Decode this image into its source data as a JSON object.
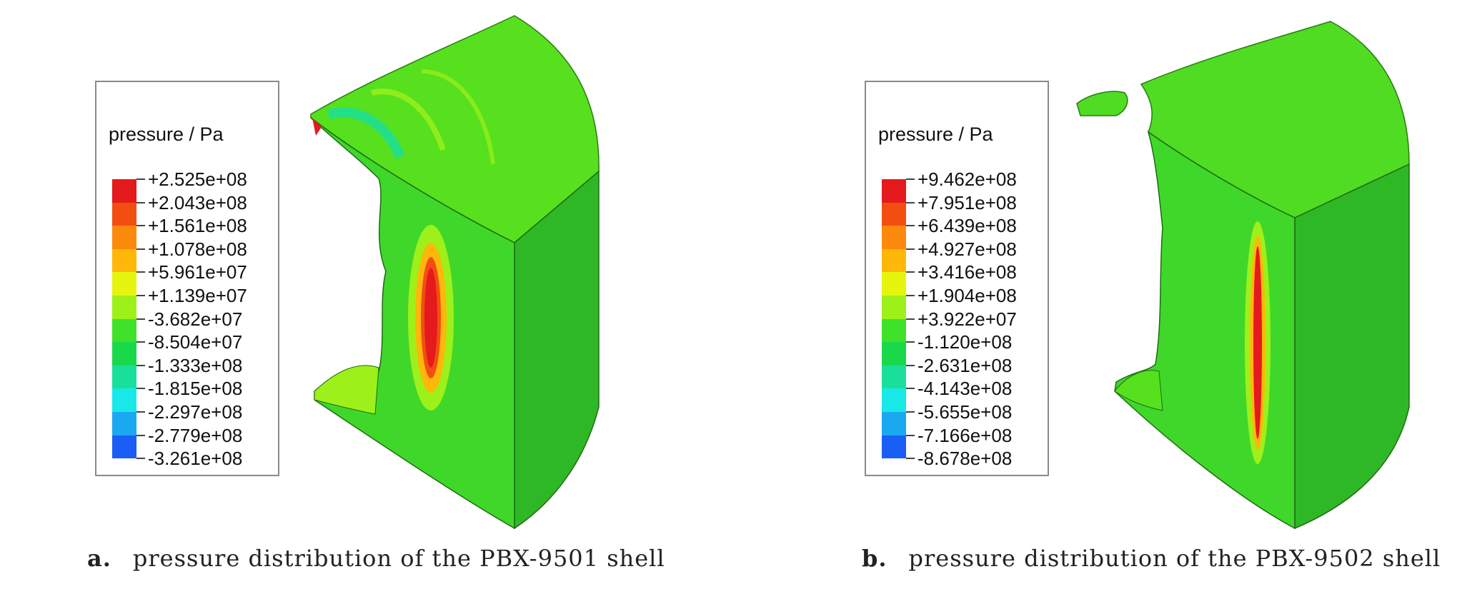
{
  "figure": {
    "panels": [
      {
        "id": "a",
        "legend_title": "pressure / Pa",
        "labels": [
          "+2.525e+08",
          "+2.043e+08",
          "+1.561e+08",
          "+1.078e+08",
          "+5.961e+07",
          "+1.139e+07",
          "-3.682e+07",
          "-8.504e+07",
          "-1.333e+08",
          "-1.815e+08",
          "-2.297e+08",
          "-2.779e+08",
          "-3.261e+08"
        ],
        "caption_letter": "a.",
        "caption_text": "pressure distribution of the PBX-9501 shell"
      },
      {
        "id": "b",
        "legend_title": "pressure / Pa",
        "labels": [
          "+9.462e+08",
          "+7.951e+08",
          "+6.439e+08",
          "+4.927e+08",
          "+3.416e+08",
          "+1.904e+08",
          "+3.922e+07",
          "-1.120e+08",
          "-2.631e+08",
          "-4.143e+08",
          "-5.655e+08",
          "-7.166e+08",
          "-8.678e+08"
        ],
        "caption_letter": "b.",
        "caption_text": "pressure distribution of the PBX-9502 shell"
      }
    ],
    "colormap": [
      "#e41a1c",
      "#f24e12",
      "#fb8a0c",
      "#ffb70a",
      "#e6f50e",
      "#9ef01a",
      "#3fe12a",
      "#19d94a",
      "#1adf9a",
      "#19e8e8",
      "#1aa8f0",
      "#1a5ef5",
      "#1414f0"
    ]
  }
}
